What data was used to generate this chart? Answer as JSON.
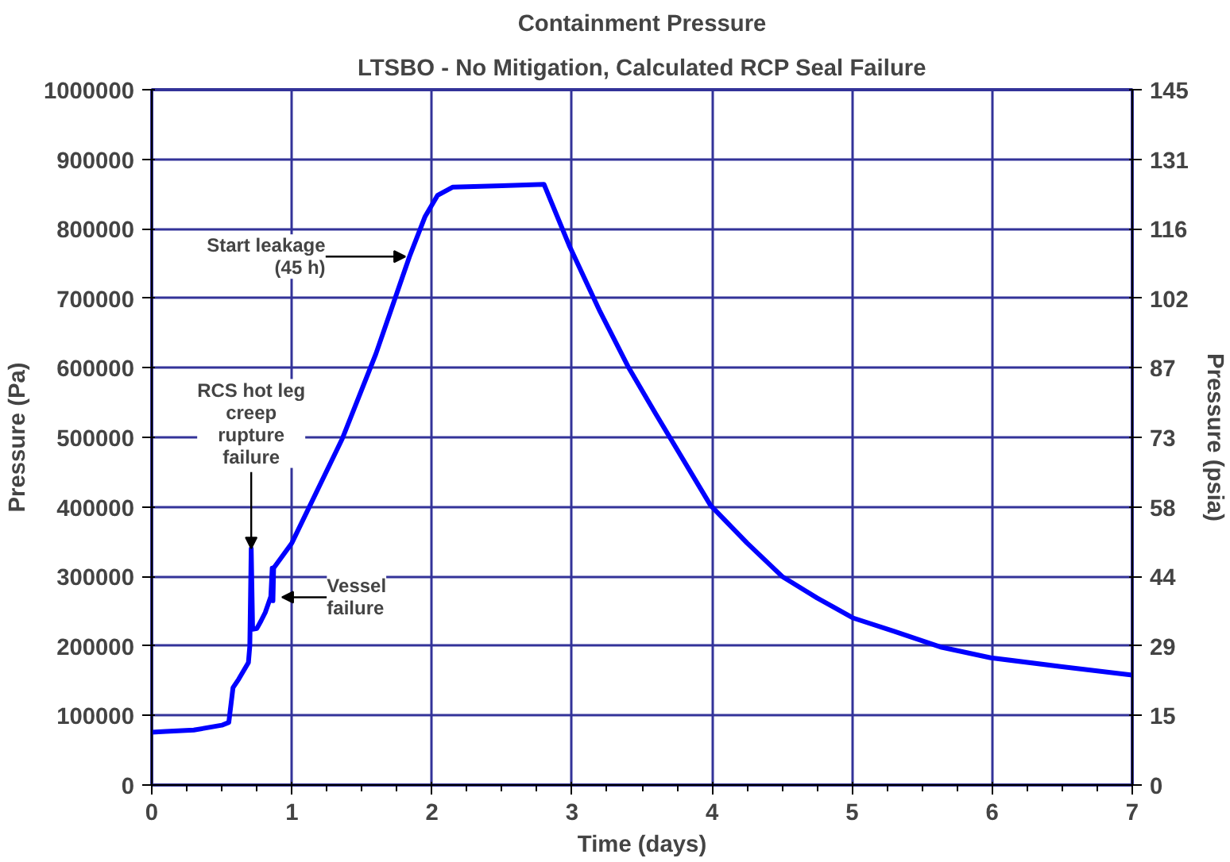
{
  "chart_data": {
    "type": "line",
    "title": "Containment Pressure",
    "subtitle": "LTSBO - No Mitigation, Calculated RCP Seal Failure",
    "xlabel": "Time (days)",
    "ylabel": "Pressure (Pa)",
    "y2label": "Pressure (psia)",
    "x": [
      0,
      0.1,
      0.3,
      0.5,
      0.55,
      0.58,
      0.62,
      0.69,
      0.7,
      0.71,
      0.72,
      0.75,
      0.78,
      0.81,
      0.85,
      0.86,
      0.865,
      0.87,
      1.0,
      1.36,
      1.6,
      1.84,
      1.95,
      2.04,
      2.15,
      2.5,
      2.8,
      2.98,
      3.2,
      3.4,
      3.6,
      3.99,
      4.25,
      4.5,
      4.75,
      5.01,
      5.3,
      5.64,
      5.99,
      6.5,
      7.0
    ],
    "series": [
      {
        "color": "#0000ff",
        "values": [
          76000,
          77000,
          79000,
          86000,
          90000,
          140000,
          152000,
          176000,
          200000,
          340000,
          224000,
          225000,
          236000,
          248000,
          271000,
          312000,
          265000,
          312000,
          348000,
          498000,
          620000,
          760000,
          817000,
          848000,
          860000,
          862000,
          864000,
          776000,
          681000,
          602000,
          533000,
          402000,
          348000,
          300000,
          269000,
          240000,
          221000,
          198000,
          183000,
          170000,
          158000
        ]
      }
    ],
    "xlim": [
      0,
      7
    ],
    "xticks": [
      0,
      1,
      2,
      3,
      4,
      5,
      6,
      7
    ],
    "ylim": [
      0,
      1000000
    ],
    "yticks": [
      0,
      100000,
      200000,
      300000,
      400000,
      500000,
      600000,
      700000,
      800000,
      900000,
      1000000
    ],
    "y2lim": [
      0,
      145
    ],
    "y2ticks": [
      0,
      {
        "value": 14.5,
        "label": "15"
      },
      29,
      {
        "value": 43.5,
        "label": "44"
      },
      58,
      {
        "value": 72.5,
        "label": "73"
      },
      87,
      {
        "value": 101.5,
        "label": "102"
      },
      116,
      {
        "value": 130.5,
        "label": "131"
      },
      145
    ],
    "grid": true,
    "annotations": [
      {
        "text": "RCS hot leg\ncreep\nrupture\nfailure",
        "x": 0.71,
        "y": 340000
      },
      {
        "text": "Vessel\nfailure",
        "x": 0.9,
        "y": 270000
      },
      {
        "text": "Start leakage\n(45 h)",
        "x": 1.84,
        "y": 760000
      }
    ]
  }
}
